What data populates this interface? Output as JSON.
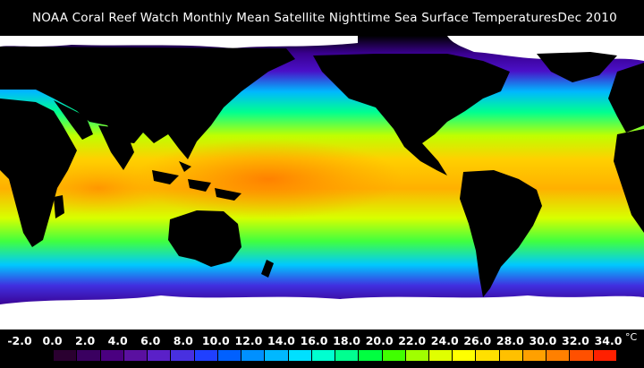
{
  "title": {
    "text": "NOAA Coral Reef Watch Monthly Mean Satellite Nighttime Sea Surface Temperatures",
    "date": "Dec 2010"
  },
  "legend": {
    "unit": "°C",
    "tick_labels": [
      "-2.0",
      "0.0",
      "2.0",
      "4.0",
      "6.0",
      "8.0",
      "10.0",
      "12.0",
      "14.0",
      "16.0",
      "18.0",
      "20.0",
      "22.0",
      "24.0",
      "26.0",
      "28.0",
      "30.0",
      "32.0",
      "34.0"
    ],
    "range": [
      -2.0,
      34.0
    ],
    "colors": [
      "#000000",
      "#2a0030",
      "#3a0060",
      "#4a0080",
      "#5a10a0",
      "#5a20c8",
      "#4830e0",
      "#2040ff",
      "#0060ff",
      "#0090ff",
      "#00b8ff",
      "#00e0ff",
      "#00ffd0",
      "#00ff90",
      "#00ff40",
      "#40ff00",
      "#a0ff00",
      "#e0ff00",
      "#ffff00",
      "#ffe000",
      "#ffc000",
      "#ffa000",
      "#ff8000",
      "#ff5000",
      "#ff2000"
    ]
  },
  "map": {
    "colors": {
      "land": "#000000",
      "ice": "#ffffff",
      "cold": "#4a10c8",
      "cool": "#00b8ff",
      "mild": "#00ff80",
      "warm": "#c0ff00",
      "hot": "#ffb000",
      "hottest": "#ff7a00"
    }
  }
}
